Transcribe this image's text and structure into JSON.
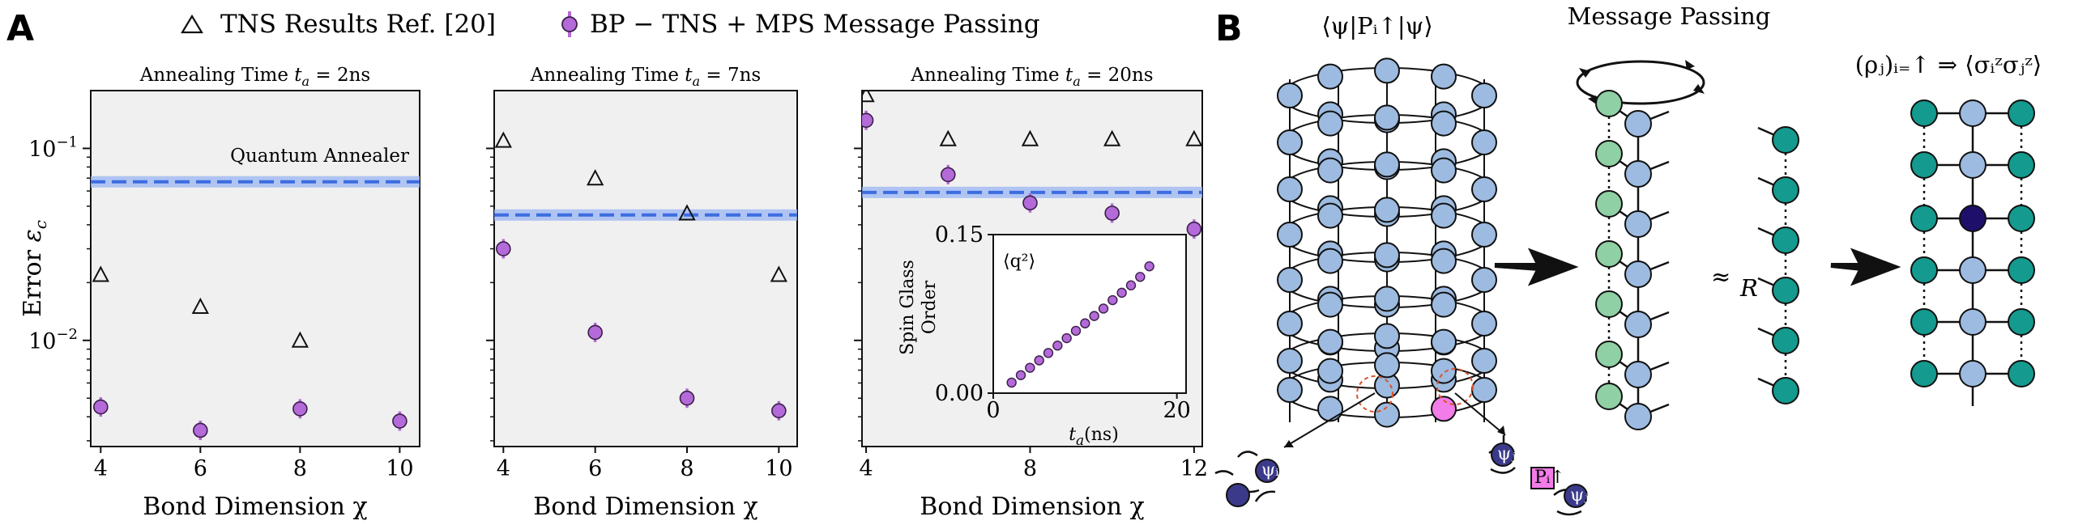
{
  "panel_a_letter": "A",
  "panel_b_letter": "B",
  "legend": {
    "tns": "TNS Results Ref. [20]",
    "bp": "BP − TNS + MPS Message Passing"
  },
  "colors": {
    "panel_bg": "#f0f0f0",
    "bp_marker": "#b46ad8",
    "bp_edge": "#3a1f4a",
    "annealer_line": "#3d6de0",
    "annealer_band": "#9fb9f2",
    "node_blue": "#9dbbe0",
    "node_teal": "#149a8e",
    "node_lightgreen": "#8fd0a5",
    "node_dark": "#1e0f6a",
    "node_pink": "#f27ce8",
    "tensor_dark": "#3b3a8a"
  },
  "chart_data": [
    {
      "type": "scatter",
      "title": "Annealing Time t_a = 2ns",
      "title_parts": [
        "Annealing Time ",
        "t",
        "a",
        " = 2ns"
      ],
      "xlabel": "Bond Dimension χ",
      "ylabel": "Error ε_c",
      "ylabel_parts": [
        "Error ",
        "ε",
        "c"
      ],
      "yscale": "log",
      "ylim": [
        0.0028,
        0.2
      ],
      "xlim": [
        3.8,
        10.4
      ],
      "xticks": [
        4,
        6,
        8,
        10
      ],
      "yticks": [
        {
          "v": 0.1,
          "b": "10",
          "e": "−1"
        },
        {
          "v": 0.01,
          "b": "10",
          "e": "−2"
        }
      ],
      "annealer": {
        "value": 0.067,
        "label": "Quantum Annealer"
      },
      "series": [
        {
          "name": "TNS Results Ref. [20]",
          "x": [
            4,
            6,
            8
          ],
          "y": [
            0.022,
            0.015,
            0.01
          ]
        },
        {
          "name": "BP − TNS + MPS Message Passing",
          "x": [
            4,
            6,
            8,
            10
          ],
          "y": [
            0.0045,
            0.0034,
            0.0044,
            0.0038
          ]
        }
      ]
    },
    {
      "type": "scatter",
      "title": "Annealing Time t_a = 7ns",
      "title_parts": [
        "Annealing Time ",
        "t",
        "a",
        " = 7ns"
      ],
      "xlabel": "Bond Dimension χ",
      "yscale": "log",
      "ylim": [
        0.0028,
        0.2
      ],
      "xlim": [
        3.8,
        10.4
      ],
      "xticks": [
        4,
        6,
        8,
        10
      ],
      "annealer": {
        "value": 0.045
      },
      "series": [
        {
          "name": "TNS Results Ref. [20]",
          "x": [
            4,
            6,
            8,
            10
          ],
          "y": [
            0.11,
            0.07,
            0.046,
            0.022
          ]
        },
        {
          "name": "BP − TNS + MPS Message Passing",
          "x": [
            4,
            6,
            8,
            10
          ],
          "y": [
            0.03,
            0.011,
            0.005,
            0.0043
          ]
        }
      ]
    },
    {
      "type": "scatter",
      "title": "Annealing Time t_a = 20ns",
      "title_parts": [
        "Annealing Time ",
        "t",
        "a",
        " = 20ns"
      ],
      "xlabel": "Bond Dimension χ",
      "yscale": "log",
      "ylim": [
        0.0028,
        0.2
      ],
      "xlim": [
        3.9,
        12.2
      ],
      "xticks": [
        4,
        8,
        12
      ],
      "annealer": {
        "value": 0.059
      },
      "series": [
        {
          "name": "TNS Results Ref. [20]",
          "x": [
            4,
            6,
            8,
            10,
            12
          ],
          "y": [
            0.19,
            0.112,
            0.112,
            0.112,
            0.112
          ]
        },
        {
          "name": "BP − TNS + MPS Message Passing",
          "x": [
            4,
            6,
            8,
            10,
            12
          ],
          "y": [
            0.14,
            0.073,
            0.052,
            0.046,
            0.038
          ]
        }
      ],
      "inset": {
        "type": "scatter",
        "xlabel": "t_a(ns)",
        "xlabel_parts": [
          "t",
          "a",
          "(ns)"
        ],
        "ylabel_lines": [
          "Spin Glass",
          "Order"
        ],
        "annotation": "⟨q²⟩",
        "xlim": [
          0,
          21
        ],
        "ylim": [
          0,
          0.15
        ],
        "xticks": [
          0,
          20
        ],
        "yticks": [
          "0.00",
          "0.15"
        ],
        "x": [
          2,
          3,
          4,
          5,
          6,
          7,
          8,
          9,
          10,
          11,
          12,
          13,
          14,
          15,
          16,
          17
        ],
        "y": [
          0.01,
          0.017,
          0.024,
          0.031,
          0.038,
          0.045,
          0.052,
          0.059,
          0.066,
          0.073,
          0.08,
          0.088,
          0.095,
          0.102,
          0.11,
          0.12
        ]
      }
    }
  ],
  "diagram": {
    "psi_label": "⟨ψ|Pᵢ↑|ψ⟩",
    "message_passing_label": "Message Passing",
    "approx_symbol": "≈",
    "approx_sub": "R",
    "rho_label": "(ρⱼ)ᵢ₌↑ ⇒ ⟨σᵢᶻσⱼᶻ⟩",
    "tensor_labels": [
      "ψᵢ",
      "ψⱼ",
      "Pᵢ↑",
      "ψⱼ"
    ]
  }
}
